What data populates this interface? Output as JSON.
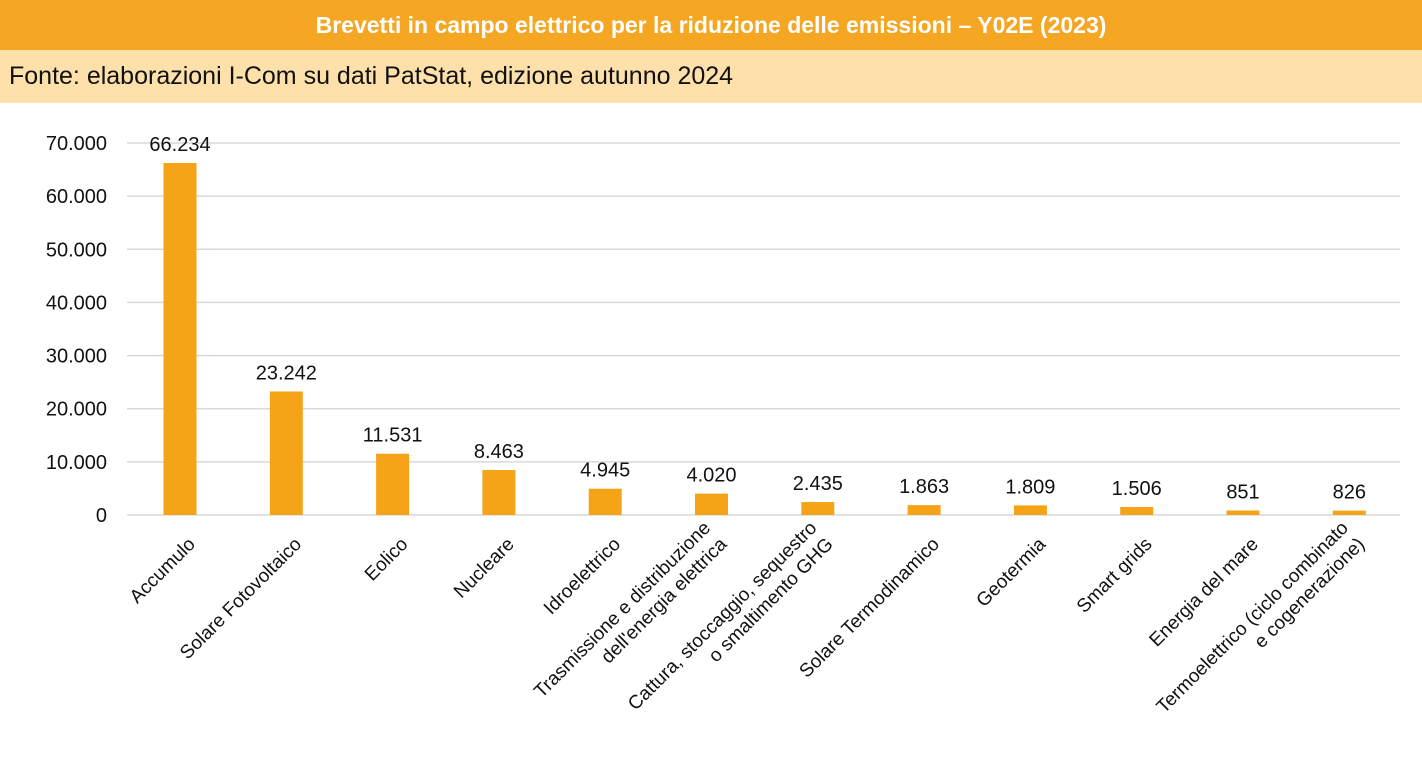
{
  "header": {
    "title": "Brevetti in campo elettrico per la riduzione delle emissioni – Y02E (2023)",
    "source": "Fonte: elaborazioni I-Com su dati PatStat, edizione autunno 2024"
  },
  "colors": {
    "bar": "#f5a418",
    "grid": "#d9d9d9",
    "title_bg": "#f5a623",
    "source_bg": "#fde0aa"
  },
  "chart_data": {
    "type": "bar",
    "categories": [
      [
        "Accumulo"
      ],
      [
        "Solare Fotovoltaico"
      ],
      [
        "Eolico"
      ],
      [
        "Nucleare"
      ],
      [
        "Idroelettrico"
      ],
      [
        "Trasmissione e distribuzione",
        "dell'energia elettrica"
      ],
      [
        "Cattura, stoccaggio, sequestro",
        "o smaltimento GHG"
      ],
      [
        "Solare Termodinamico"
      ],
      [
        "Geotermia"
      ],
      [
        "Smart grids"
      ],
      [
        "Energia del mare"
      ],
      [
        "Termoelettrico (ciclo combinato",
        "e cogenerazione)"
      ]
    ],
    "values": [
      66234,
      23242,
      11531,
      8463,
      4945,
      4020,
      2435,
      1863,
      1809,
      1506,
      851,
      826
    ],
    "value_labels": [
      "66.234",
      "23.242",
      "11.531",
      "8.463",
      "4.945",
      "4.020",
      "2.435",
      "1.863",
      "1.809",
      "1.506",
      "851",
      "826"
    ],
    "yticks": [
      0,
      10000,
      20000,
      30000,
      40000,
      50000,
      60000,
      70000
    ],
    "ytick_labels": [
      "0",
      "10.000",
      "20.000",
      "30.000",
      "40.000",
      "50.000",
      "60.000",
      "70.000"
    ],
    "ylim": [
      0,
      70000
    ],
    "grid": true,
    "legend": "none"
  }
}
